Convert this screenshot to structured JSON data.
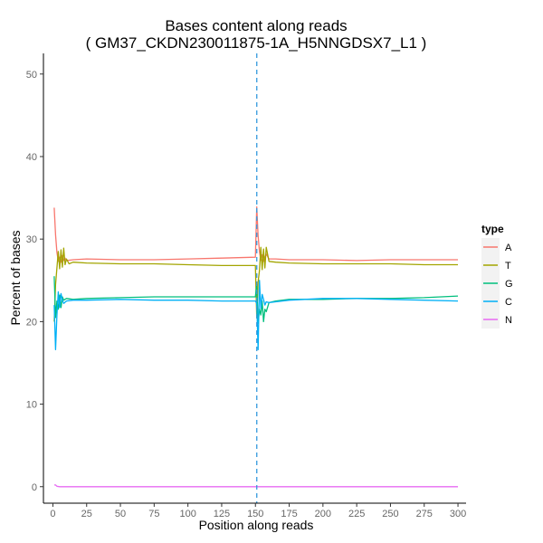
{
  "chart_data": {
    "type": "line",
    "title": [
      "Bases content along reads",
      "( GM37_CKDN230011875-1A_H5NNGDSX7_L1 )"
    ],
    "xlabel": "Position along reads",
    "ylabel": "Percent of bases",
    "xlim": [
      -7,
      306
    ],
    "ylim": [
      -2,
      52.5
    ],
    "xticks": [
      0,
      25,
      50,
      75,
      100,
      125,
      150,
      175,
      200,
      225,
      250,
      275,
      300
    ],
    "yticks": [
      0,
      10,
      20,
      30,
      40,
      50
    ],
    "grid": false,
    "vline": {
      "x": 151,
      "color": "#3399dd",
      "style": "dashed"
    },
    "legend": {
      "title": "type",
      "position": "right"
    },
    "series": [
      {
        "name": "A",
        "color": "#F8766D",
        "points": [
          [
            1,
            33.8
          ],
          [
            2,
            30.5
          ],
          [
            3,
            28.4
          ],
          [
            4,
            27.3
          ],
          [
            5,
            27.8
          ],
          [
            6,
            27.2
          ],
          [
            7,
            28.0
          ],
          [
            8,
            27.4
          ],
          [
            9,
            27.7
          ],
          [
            10,
            27.4
          ],
          [
            15,
            27.5
          ],
          [
            25,
            27.6
          ],
          [
            50,
            27.5
          ],
          [
            75,
            27.5
          ],
          [
            100,
            27.6
          ],
          [
            125,
            27.7
          ],
          [
            150,
            27.8
          ],
          [
            151,
            33.9
          ],
          [
            152,
            30.4
          ],
          [
            153,
            28.5
          ],
          [
            154,
            27.4
          ],
          [
            155,
            28.1
          ],
          [
            156,
            27.3
          ],
          [
            158,
            28.2
          ],
          [
            160,
            27.6
          ],
          [
            165,
            27.6
          ],
          [
            175,
            27.5
          ],
          [
            200,
            27.5
          ],
          [
            225,
            27.4
          ],
          [
            250,
            27.5
          ],
          [
            275,
            27.5
          ],
          [
            300,
            27.5
          ]
        ]
      },
      {
        "name": "T",
        "color": "#A3A500",
        "points": [
          [
            1,
            20.0
          ],
          [
            2,
            24.5
          ],
          [
            3,
            26.5
          ],
          [
            4,
            28.5
          ],
          [
            5,
            26.4
          ],
          [
            6,
            28.7
          ],
          [
            7,
            26.6
          ],
          [
            8,
            28.9
          ],
          [
            9,
            26.9
          ],
          [
            10,
            27.6
          ],
          [
            12,
            27.0
          ],
          [
            15,
            27.2
          ],
          [
            25,
            27.1
          ],
          [
            50,
            27.0
          ],
          [
            75,
            27.0
          ],
          [
            100,
            26.9
          ],
          [
            125,
            26.8
          ],
          [
            150,
            26.8
          ],
          [
            151,
            20.5
          ],
          [
            152,
            24.8
          ],
          [
            153,
            26.2
          ],
          [
            154,
            29.0
          ],
          [
            155,
            26.3
          ],
          [
            156,
            28.8
          ],
          [
            157,
            26.5
          ],
          [
            158,
            29.0
          ],
          [
            160,
            27.3
          ],
          [
            165,
            27.2
          ],
          [
            175,
            27.1
          ],
          [
            200,
            27.0
          ],
          [
            225,
            27.0
          ],
          [
            250,
            27.0
          ],
          [
            275,
            26.9
          ],
          [
            300,
            26.9
          ]
        ]
      },
      {
        "name": "G",
        "color": "#00BF7D",
        "points": [
          [
            1,
            25.5
          ],
          [
            2,
            20.5
          ],
          [
            3,
            22.5
          ],
          [
            4,
            21.5
          ],
          [
            5,
            23.2
          ],
          [
            6,
            21.7
          ],
          [
            7,
            23.0
          ],
          [
            8,
            22.6
          ],
          [
            10,
            22.8
          ],
          [
            15,
            22.7
          ],
          [
            25,
            22.8
          ],
          [
            50,
            22.9
          ],
          [
            75,
            23.0
          ],
          [
            100,
            23.0
          ],
          [
            125,
            23.0
          ],
          [
            150,
            23.0
          ],
          [
            151,
            24.5
          ],
          [
            152,
            19.8
          ],
          [
            153,
            21.5
          ],
          [
            154,
            20.8
          ],
          [
            155,
            22.5
          ],
          [
            156,
            20.0
          ],
          [
            157,
            21.5
          ],
          [
            158,
            21.2
          ],
          [
            160,
            22.3
          ],
          [
            165,
            22.5
          ],
          [
            175,
            22.7
          ],
          [
            200,
            22.7
          ],
          [
            225,
            22.8
          ],
          [
            250,
            22.8
          ],
          [
            275,
            22.9
          ],
          [
            300,
            23.1
          ]
        ]
      },
      {
        "name": "C",
        "color": "#00B0F6",
        "points": [
          [
            1,
            22.0
          ],
          [
            2,
            16.6
          ],
          [
            3,
            20.8
          ],
          [
            4,
            23.6
          ],
          [
            5,
            21.7
          ],
          [
            6,
            23.4
          ],
          [
            7,
            22.6
          ],
          [
            8,
            22.2
          ],
          [
            10,
            22.5
          ],
          [
            15,
            22.6
          ],
          [
            25,
            22.6
          ],
          [
            50,
            22.7
          ],
          [
            75,
            22.6
          ],
          [
            100,
            22.6
          ],
          [
            125,
            22.5
          ],
          [
            150,
            22.5
          ],
          [
            151,
            22.2
          ],
          [
            152,
            16.6
          ],
          [
            153,
            25.0
          ],
          [
            154,
            21.6
          ],
          [
            155,
            23.3
          ],
          [
            156,
            22.7
          ],
          [
            157,
            22.0
          ],
          [
            158,
            22.4
          ],
          [
            160,
            22.3
          ],
          [
            165,
            22.4
          ],
          [
            175,
            22.6
          ],
          [
            200,
            22.8
          ],
          [
            225,
            22.8
          ],
          [
            250,
            22.7
          ],
          [
            275,
            22.6
          ],
          [
            300,
            22.5
          ]
        ]
      },
      {
        "name": "N",
        "color": "#E76BF3",
        "points": [
          [
            1,
            0.2
          ],
          [
            2,
            0.2
          ],
          [
            3,
            0.05
          ],
          [
            5,
            0.0
          ],
          [
            25,
            0.0
          ],
          [
            100,
            0.0
          ],
          [
            150,
            0.0
          ],
          [
            151,
            0.0
          ],
          [
            200,
            0.0
          ],
          [
            300,
            0.0
          ]
        ]
      }
    ]
  }
}
